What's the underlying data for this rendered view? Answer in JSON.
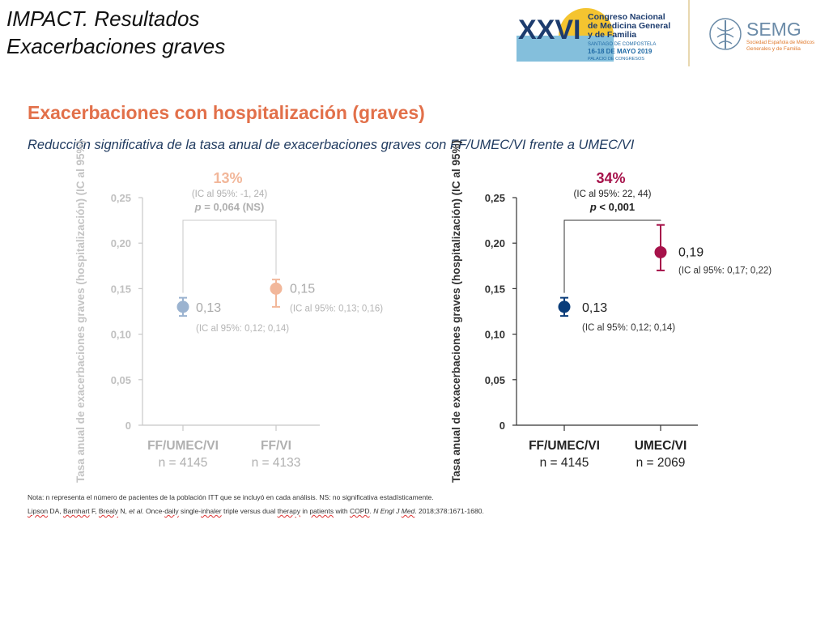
{
  "slide": {
    "title_line1": "IMPACT. Resultados",
    "title_line2": "Exacerbaciones graves"
  },
  "logos": {
    "congreso_numeral": "XXVI",
    "congreso_line1": "Congreso Nacional",
    "congreso_line2": "de Medicina General",
    "congreso_line3": "y de Familia",
    "congreso_city": "SANTIAGO DE COMPOSTELA",
    "congreso_dates": "16-18 DE MAYO 2019",
    "congreso_venue": "PALACIO DE CONGRESOS",
    "semg_name": "SEMG",
    "semg_sub1": "Sociedad Española de Médicos",
    "semg_sub2": "Generales y de Familia"
  },
  "heading": "Exacerbaciones con hospitalización (graves)",
  "subheading": "Reducción significativa de la tasa anual de exacerbaciones graves con FF/UMEC/VI frente a UMEC/VI",
  "colors": {
    "heading": "#e2704a",
    "left_dim": "#b8b8b8",
    "left_ffumecvi": "#9bb3d0",
    "left_ffvi": "#f2b79a",
    "left_pct": "#f2b79a",
    "right_ffumecvi": "#0a3d7a",
    "right_umecvi": "#a6124a",
    "right_pct": "#a6124a"
  },
  "chart_data": [
    {
      "type": "scatter",
      "variant": "point-with-error-bars",
      "faded": true,
      "ylabel": "Tasa anual de exacerbaciones graves (hospitalización) (IC al 95%)",
      "ylim": [
        0,
        0.25
      ],
      "y_ticks": [
        0,
        0.05,
        0.1,
        0.15,
        0.2,
        0.25
      ],
      "y_tick_labels": [
        "0",
        "0,05",
        "0,10",
        "0,15",
        "0,20",
        "0,25"
      ],
      "categories": [
        "FF/UMEC/VI",
        "FF/VI"
      ],
      "n_labels": [
        "n = 4145",
        "n = 4133"
      ],
      "values": [
        0.13,
        0.15
      ],
      "ci": [
        [
          0.12,
          0.14
        ],
        [
          0.13,
          0.16
        ]
      ],
      "value_labels": [
        "0,13",
        "0,15"
      ],
      "ci_labels": [
        "(IC al 95%: 0,12; 0,14)",
        "(IC al 95%: 0,13; 0,16)"
      ],
      "comparison": {
        "reduction": "13%",
        "ci": "(IC al 95%: -1, 24)",
        "p_prefix": "p",
        "p_rest": " = 0,064 (NS)"
      }
    },
    {
      "type": "scatter",
      "variant": "point-with-error-bars",
      "faded": false,
      "ylabel": "Tasa anual de exacerbaciones graves (hospitalización) (IC al 95%)",
      "ylim": [
        0,
        0.25
      ],
      "y_ticks": [
        0,
        0.05,
        0.1,
        0.15,
        0.2,
        0.25
      ],
      "y_tick_labels": [
        "0",
        "0,05",
        "0,10",
        "0,15",
        "0,20",
        "0,25"
      ],
      "categories": [
        "FF/UMEC/VI",
        "UMEC/VI"
      ],
      "n_labels": [
        "n = 4145",
        "n = 2069"
      ],
      "values": [
        0.13,
        0.19
      ],
      "ci": [
        [
          0.12,
          0.14
        ],
        [
          0.17,
          0.22
        ]
      ],
      "value_labels": [
        "0,13",
        "0,19"
      ],
      "ci_labels": [
        "(IC al 95%: 0,12; 0,14)",
        "(IC al 95%: 0,17; 0,22)"
      ],
      "comparison": {
        "reduction": "34%",
        "ci": "(IC al 95%: 22, 44)",
        "p_prefix": "p",
        "p_rest": " < 0,001"
      }
    }
  ],
  "footnote": {
    "note": "Nota: n representa el número de pacientes de la población ITT que se incluyó en cada análisis. NS: no significativa estadísticamente.",
    "ref_authors_a": "Lipson",
    "ref_authors_b": " DA, ",
    "ref_authors_c": "Barnhart",
    "ref_authors_d": " F, ",
    "ref_authors_e": "Brealy",
    "ref_authors_f": " N, ",
    "ref_etal": "et al.",
    "ref_title_a": " Once-",
    "ref_title_b": "daily",
    "ref_title_c": " single-",
    "ref_title_d": "inhaler",
    "ref_title_e": " triple versus dual ",
    "ref_title_f": "therapy",
    "ref_title_g": " in ",
    "ref_title_h": "patients",
    "ref_title_i": " with ",
    "ref_title_j": "COPD",
    "ref_title_k": ". ",
    "ref_journal_a": "N Engl J ",
    "ref_journal_b": "Med",
    "ref_tail": ". 2018;378:1671-1680."
  }
}
